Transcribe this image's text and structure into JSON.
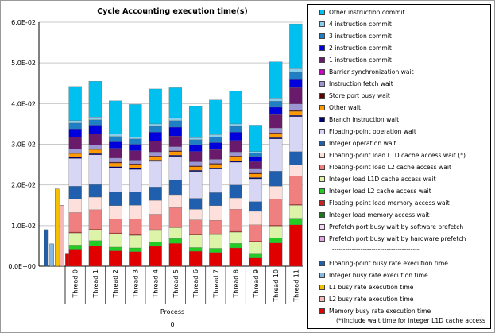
{
  "chart_data": {
    "type": "bar",
    "stacked": true,
    "title": "Cycle Accounting execution time(s)",
    "xlabel": "Process",
    "process_label": "0",
    "ylim": [
      0,
      0.06
    ],
    "yticks": [
      0,
      0.01,
      0.02,
      0.03,
      0.04,
      0.05,
      0.06
    ],
    "ytick_labels": [
      "0.0E+00",
      "1.0E-02",
      "2.0E-02",
      "3.0E-02",
      "4.0E-02",
      "5.0E-02",
      "6.0E-02"
    ],
    "categories": [
      "Thread 0",
      "Thread 1",
      "Thread 2",
      "Thread 3",
      "Thread 4",
      "Thread 5",
      "Thread 6",
      "Thread 7",
      "Thread 8",
      "Thread 9",
      "Thread 10",
      "Thread 11"
    ],
    "series": [
      {
        "name": "Memory busy rate execution time",
        "color": "#e00000",
        "values": [
          0.0042,
          0.005,
          0.0038,
          0.0036,
          0.0049,
          0.0056,
          0.0037,
          0.0034,
          0.0045,
          0.002,
          0.0057,
          0.0102
        ]
      },
      {
        "name": "Integer load memory access wait",
        "color": "#1a7a1a",
        "values": [
          0,
          0,
          0,
          0,
          0,
          0,
          0,
          0,
          0,
          0,
          0,
          0
        ]
      },
      {
        "name": "Integer load L2 cache access wait",
        "color": "#22cc22",
        "values": [
          0.001,
          0.0013,
          0.0009,
          0.0009,
          0.0011,
          0.0012,
          0.0009,
          0.001,
          0.0011,
          0.0012,
          0.0013,
          0.0016
        ]
      },
      {
        "name": "Integer load L1D cache access wait",
        "color": "#ddf3a8",
        "values": [
          0.003,
          0.0026,
          0.0033,
          0.0031,
          0.0028,
          0.0027,
          0.0031,
          0.0034,
          0.0028,
          0.0028,
          0.0029,
          0.0032
        ]
      },
      {
        "name": "Floating-point load memory access wait",
        "color": "#cc1f1f",
        "values": [
          0.0002,
          0.0002,
          0.0002,
          0.0002,
          0.0002,
          0.0002,
          0.0002,
          0.0002,
          0.0002,
          0.0002,
          0.0002,
          0.0002
        ]
      },
      {
        "name": "Floating-point load L2 cache access wait",
        "color": "#f08080",
        "values": [
          0.0048,
          0.0048,
          0.0034,
          0.0038,
          0.0038,
          0.0047,
          0.0035,
          0.0033,
          0.0054,
          0.004,
          0.0064,
          0.007
        ]
      },
      {
        "name": "Floating-point load L1D cache access wait (*)",
        "color": "#fde0dc",
        "values": [
          0.0033,
          0.0031,
          0.0033,
          0.0034,
          0.0034,
          0.0032,
          0.0026,
          0.0036,
          0.0028,
          0.0033,
          0.0032,
          0.0027
        ]
      },
      {
        "name": "Integer operation wait",
        "color": "#1f5fae",
        "values": [
          0.0032,
          0.0031,
          0.0033,
          0.0032,
          0.0033,
          0.0036,
          0.0027,
          0.0032,
          0.0032,
          0.0024,
          0.0037,
          0.0033
        ]
      },
      {
        "name": "Floating-point operation wait",
        "color": "#d7d7f5",
        "values": [
          0.0068,
          0.0073,
          0.006,
          0.0056,
          0.0063,
          0.0058,
          0.0066,
          0.0058,
          0.0056,
          0.0056,
          0.0079,
          0.0086
        ]
      },
      {
        "name": "Branch instruction wait",
        "color": "#000070",
        "values": [
          0.0003,
          0.0003,
          0.0003,
          0.0003,
          0.0003,
          0.0003,
          0.0003,
          0.0003,
          0.0003,
          0.0003,
          0.0003,
          0.0003
        ]
      },
      {
        "name": "Other wait",
        "color": "#ff9900",
        "values": [
          0.0009,
          0.001,
          0.0009,
          0.0009,
          0.0008,
          0.0009,
          0.0009,
          0.0009,
          0.001,
          0.0009,
          0.001,
          0.001
        ]
      },
      {
        "name": "Store port busy wait",
        "color": "#5a0000",
        "values": [
          0.0002,
          0.0002,
          0.0002,
          0.0002,
          0.0002,
          0.0002,
          0.0002,
          0.0002,
          0.0002,
          0.0002,
          0.0002,
          0.0002
        ]
      },
      {
        "name": "Instruction fetch wait",
        "color": "#9c96d4",
        "values": [
          0.001,
          0.0009,
          0.001,
          0.0009,
          0.001,
          0.001,
          0.001,
          0.001,
          0.001,
          0.001,
          0.0012,
          0.0016
        ]
      },
      {
        "name": "Barrier synchronization wait",
        "color": "#cc00cc",
        "values": [
          0,
          0,
          0,
          0,
          0,
          0,
          0,
          0,
          0,
          0,
          0,
          0
        ]
      },
      {
        "name": "1 instruction commit",
        "color": "#6a1a6a",
        "values": [
          0.0028,
          0.0027,
          0.0024,
          0.0023,
          0.0027,
          0.0026,
          0.0025,
          0.0024,
          0.0028,
          0.0018,
          0.0033,
          0.004
        ]
      },
      {
        "name": "2 instruction commit",
        "color": "#0000dd",
        "values": [
          0.0021,
          0.0022,
          0.0016,
          0.0016,
          0.0022,
          0.0022,
          0.0017,
          0.0017,
          0.0021,
          0.0013,
          0.0018,
          0.002
        ]
      },
      {
        "name": "3 instruction commit",
        "color": "#1f7fc4",
        "values": [
          0.0014,
          0.0013,
          0.0013,
          0.0013,
          0.0014,
          0.0016,
          0.0012,
          0.0014,
          0.0014,
          0.0008,
          0.0015,
          0.0018
        ]
      },
      {
        "name": "4 instruction commit",
        "color": "#87ceeb",
        "values": [
          0.0006,
          0.0007,
          0.0006,
          0.0005,
          0.0006,
          0.0007,
          0.0005,
          0.0006,
          0.0006,
          0.0004,
          0.0008,
          0.0009
        ]
      },
      {
        "name": "Other instruction commit",
        "color": "#00c0f0",
        "values": [
          0.0084,
          0.0088,
          0.0082,
          0.008,
          0.0086,
          0.0074,
          0.0077,
          0.0085,
          0.0081,
          0.0065,
          0.0089,
          0.011
        ]
      }
    ],
    "process_bars": [
      {
        "name": "Floating-point busy rate execution time",
        "color": "#1f5fae",
        "value": 0.009
      },
      {
        "name": "Integer busy rate execution time",
        "color": "#87b8e0",
        "value": 0.0055
      },
      {
        "name": "L1 busy rate execution time",
        "color": "#f5c000",
        "value": 0.019
      },
      {
        "name": "L2 busy rate execution time",
        "color": "#f4b8b8",
        "value": 0.015
      },
      {
        "name": "Memory busy rate execution time",
        "color": "#e00000",
        "value": 0.0032
      }
    ]
  },
  "legend": {
    "items": [
      {
        "label": "Other instruction commit",
        "color": "#00c0f0"
      },
      {
        "label": "4 instruction commit",
        "color": "#87ceeb"
      },
      {
        "label": "3 instruction commit",
        "color": "#1f7fc4"
      },
      {
        "label": "2 instruction commit",
        "color": "#0000dd"
      },
      {
        "label": "1 instruction commit",
        "color": "#6a1a6a"
      },
      {
        "label": "Barrier synchronization wait",
        "color": "#cc00cc"
      },
      {
        "label": "Instruction fetch wait",
        "color": "#9c96d4"
      },
      {
        "label": "Store port busy wait",
        "color": "#5a0000"
      },
      {
        "label": "Other wait",
        "color": "#ff9900"
      },
      {
        "label": "Branch instruction wait",
        "color": "#000070"
      },
      {
        "label": "Floating-point operation wait",
        "color": "#d7d7f5"
      },
      {
        "label": "Integer operation wait",
        "color": "#1f5fae"
      },
      {
        "label": "Floating-point load L1D cache access wait (*)",
        "color": "#fde0dc"
      },
      {
        "label": "Floating-point load L2 cache access wait",
        "color": "#f08080"
      },
      {
        "label": "Integer load L1D cache access wait",
        "color": "#ddf3a8"
      },
      {
        "label": "Integer load L2 cache access wait",
        "color": "#22cc22"
      },
      {
        "label": "Floating-point load memory access wait",
        "color": "#cc1f1f"
      },
      {
        "label": "Integer load memory access wait",
        "color": "#1a7a1a"
      },
      {
        "label": "Prefetch port busy wait by software prefetch",
        "color": "#f4d6f4"
      },
      {
        "label": "Prefetch port busy wait by hardware prefetch",
        "color": "#e3a6e3"
      }
    ],
    "separator": "----------------------------------------",
    "items2": [
      {
        "label": "Floating-point busy rate execution time",
        "color": "#1f5fae"
      },
      {
        "label": "Integer busy rate execution time",
        "color": "#87b8e0"
      },
      {
        "label": "L1 busy rate execution time",
        "color": "#f5c000"
      },
      {
        "label": "L2 busy rate execution time",
        "color": "#f4b8b8"
      },
      {
        "label": "Memory busy rate execution time",
        "color": "#e00000"
      }
    ],
    "note": "(*)Include wait time for integer L1D cache access"
  }
}
